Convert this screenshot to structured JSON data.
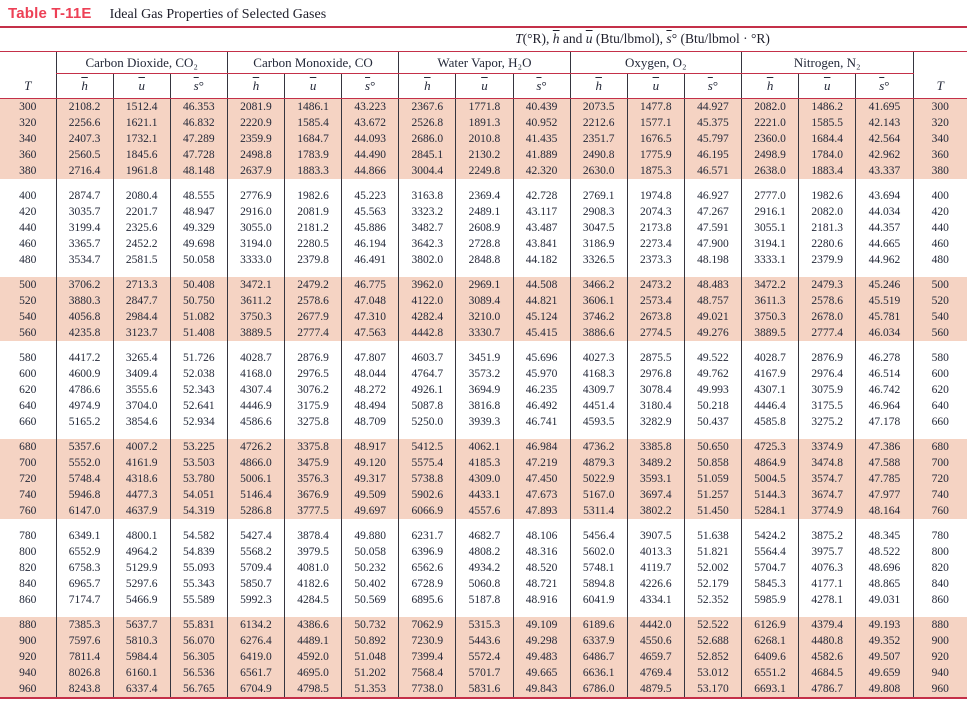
{
  "title": {
    "label": "Table T-11E",
    "caption": "Ideal Gas Properties of Selected Gases"
  },
  "units_header_parts": [
    {
      "style": "var",
      "text": "T"
    },
    {
      "style": "plain",
      "text": "(°R), "
    },
    {
      "style": "var-bar",
      "text": "h"
    },
    {
      "style": "plain",
      "text": " and "
    },
    {
      "style": "var-bar",
      "text": "u"
    },
    {
      "style": "plain",
      "text": " (Btu/lbmol), "
    },
    {
      "style": "var-bar",
      "text": "s"
    },
    {
      "style": "plain",
      "text": "° (Btu/lbmol · °R)"
    }
  ],
  "columns": {
    "t_label": "T",
    "gases": [
      "Carbon Dioxide, CO₂",
      "Carbon Monoxide, CO",
      "Water Vapor, H₂O",
      "Oxygen, O₂",
      "Nitrogen, N₂"
    ],
    "properties": [
      {
        "bar": "h",
        "suffix": ""
      },
      {
        "bar": "u",
        "suffix": ""
      },
      {
        "bar": "s",
        "suffix": "°"
      }
    ]
  },
  "colors": {
    "band_pink": "#f5d3c3",
    "rule_red": "#c43049",
    "title_red": "#ed4056",
    "text": "#232838"
  },
  "table": {
    "groups": [
      {
        "shaded": true,
        "rows": [
          [
            "300",
            "2108.2",
            "1512.4",
            "46.353",
            "2081.9",
            "1486.1",
            "43.223",
            "2367.6",
            "1771.8",
            "40.439",
            "2073.5",
            "1477.8",
            "44.927",
            "2082.0",
            "1486.2",
            "41.695"
          ],
          [
            "320",
            "2256.6",
            "1621.1",
            "46.832",
            "2220.9",
            "1585.4",
            "43.672",
            "2526.8",
            "1891.3",
            "40.952",
            "2212.6",
            "1577.1",
            "45.375",
            "2221.0",
            "1585.5",
            "42.143"
          ],
          [
            "340",
            "2407.3",
            "1732.1",
            "47.289",
            "2359.9",
            "1684.7",
            "44.093",
            "2686.0",
            "2010.8",
            "41.435",
            "2351.7",
            "1676.5",
            "45.797",
            "2360.0",
            "1684.4",
            "42.564"
          ],
          [
            "360",
            "2560.5",
            "1845.6",
            "47.728",
            "2498.8",
            "1783.9",
            "44.490",
            "2845.1",
            "2130.2",
            "41.889",
            "2490.8",
            "1775.9",
            "46.195",
            "2498.9",
            "1784.0",
            "42.962"
          ],
          [
            "380",
            "2716.4",
            "1961.8",
            "48.148",
            "2637.9",
            "1883.3",
            "44.866",
            "3004.4",
            "2249.8",
            "42.320",
            "2630.0",
            "1875.3",
            "46.571",
            "2638.0",
            "1883.4",
            "43.337"
          ]
        ]
      },
      {
        "shaded": false,
        "rows": [
          [
            "400",
            "2874.7",
            "2080.4",
            "48.555",
            "2776.9",
            "1982.6",
            "45.223",
            "3163.8",
            "2369.4",
            "42.728",
            "2769.1",
            "1974.8",
            "46.927",
            "2777.0",
            "1982.6",
            "43.694"
          ],
          [
            "420",
            "3035.7",
            "2201.7",
            "48.947",
            "2916.0",
            "2081.9",
            "45.563",
            "3323.2",
            "2489.1",
            "43.117",
            "2908.3",
            "2074.3",
            "47.267",
            "2916.1",
            "2082.0",
            "44.034"
          ],
          [
            "440",
            "3199.4",
            "2325.6",
            "49.329",
            "3055.0",
            "2181.2",
            "45.886",
            "3482.7",
            "2608.9",
            "43.487",
            "3047.5",
            "2173.8",
            "47.591",
            "3055.1",
            "2181.3",
            "44.357"
          ],
          [
            "460",
            "3365.7",
            "2452.2",
            "49.698",
            "3194.0",
            "2280.5",
            "46.194",
            "3642.3",
            "2728.8",
            "43.841",
            "3186.9",
            "2273.4",
            "47.900",
            "3194.1",
            "2280.6",
            "44.665"
          ],
          [
            "480",
            "3534.7",
            "2581.5",
            "50.058",
            "3333.0",
            "2379.8",
            "46.491",
            "3802.0",
            "2848.8",
            "44.182",
            "3326.5",
            "2373.3",
            "48.198",
            "3333.1",
            "2379.9",
            "44.962"
          ]
        ]
      },
      {
        "shaded": true,
        "rows": [
          [
            "500",
            "3706.2",
            "2713.3",
            "50.408",
            "3472.1",
            "2479.2",
            "46.775",
            "3962.0",
            "2969.1",
            "44.508",
            "3466.2",
            "2473.2",
            "48.483",
            "3472.2",
            "2479.3",
            "45.246"
          ],
          [
            "520",
            "3880.3",
            "2847.7",
            "50.750",
            "3611.2",
            "2578.6",
            "47.048",
            "4122.0",
            "3089.4",
            "44.821",
            "3606.1",
            "2573.4",
            "48.757",
            "3611.3",
            "2578.6",
            "45.519"
          ],
          [
            "540",
            "4056.8",
            "2984.4",
            "51.082",
            "3750.3",
            "2677.9",
            "47.310",
            "4282.4",
            "3210.0",
            "45.124",
            "3746.2",
            "2673.8",
            "49.021",
            "3750.3",
            "2678.0",
            "45.781"
          ],
          [
            "560",
            "4235.8",
            "3123.7",
            "51.408",
            "3889.5",
            "2777.4",
            "47.563",
            "4442.8",
            "3330.7",
            "45.415",
            "3886.6",
            "2774.5",
            "49.276",
            "3889.5",
            "2777.4",
            "46.034"
          ]
        ]
      },
      {
        "shaded": false,
        "rows": [
          [
            "580",
            "4417.2",
            "3265.4",
            "51.726",
            "4028.7",
            "2876.9",
            "47.807",
            "4603.7",
            "3451.9",
            "45.696",
            "4027.3",
            "2875.5",
            "49.522",
            "4028.7",
            "2876.9",
            "46.278"
          ],
          [
            "600",
            "4600.9",
            "3409.4",
            "52.038",
            "4168.0",
            "2976.5",
            "48.044",
            "4764.7",
            "3573.2",
            "45.970",
            "4168.3",
            "2976.8",
            "49.762",
            "4167.9",
            "2976.4",
            "46.514"
          ],
          [
            "620",
            "4786.6",
            "3555.6",
            "52.343",
            "4307.4",
            "3076.2",
            "48.272",
            "4926.1",
            "3694.9",
            "46.235",
            "4309.7",
            "3078.4",
            "49.993",
            "4307.1",
            "3075.9",
            "46.742"
          ],
          [
            "640",
            "4974.9",
            "3704.0",
            "52.641",
            "4446.9",
            "3175.9",
            "48.494",
            "5087.8",
            "3816.8",
            "46.492",
            "4451.4",
            "3180.4",
            "50.218",
            "4446.4",
            "3175.5",
            "46.964"
          ],
          [
            "660",
            "5165.2",
            "3854.6",
            "52.934",
            "4586.6",
            "3275.8",
            "48.709",
            "5250.0",
            "3939.3",
            "46.741",
            "4593.5",
            "3282.9",
            "50.437",
            "4585.8",
            "3275.2",
            "47.178"
          ]
        ]
      },
      {
        "shaded": true,
        "rows": [
          [
            "680",
            "5357.6",
            "4007.2",
            "53.225",
            "4726.2",
            "3375.8",
            "48.917",
            "5412.5",
            "4062.1",
            "46.984",
            "4736.2",
            "3385.8",
            "50.650",
            "4725.3",
            "3374.9",
            "47.386"
          ],
          [
            "700",
            "5552.0",
            "4161.9",
            "53.503",
            "4866.0",
            "3475.9",
            "49.120",
            "5575.4",
            "4185.3",
            "47.219",
            "4879.3",
            "3489.2",
            "50.858",
            "4864.9",
            "3474.8",
            "47.588"
          ],
          [
            "720",
            "5748.4",
            "4318.6",
            "53.780",
            "5006.1",
            "3576.3",
            "49.317",
            "5738.8",
            "4309.0",
            "47.450",
            "5022.9",
            "3593.1",
            "51.059",
            "5004.5",
            "3574.7",
            "47.785"
          ],
          [
            "740",
            "5946.8",
            "4477.3",
            "54.051",
            "5146.4",
            "3676.9",
            "49.509",
            "5902.6",
            "4433.1",
            "47.673",
            "5167.0",
            "3697.4",
            "51.257",
            "5144.3",
            "3674.7",
            "47.977"
          ],
          [
            "760",
            "6147.0",
            "4637.9",
            "54.319",
            "5286.8",
            "3777.5",
            "49.697",
            "6066.9",
            "4557.6",
            "47.893",
            "5311.4",
            "3802.2",
            "51.450",
            "5284.1",
            "3774.9",
            "48.164"
          ]
        ]
      },
      {
        "shaded": false,
        "rows": [
          [
            "780",
            "6349.1",
            "4800.1",
            "54.582",
            "5427.4",
            "3878.4",
            "49.880",
            "6231.7",
            "4682.7",
            "48.106",
            "5456.4",
            "3907.5",
            "51.638",
            "5424.2",
            "3875.2",
            "48.345"
          ],
          [
            "800",
            "6552.9",
            "4964.2",
            "54.839",
            "5568.2",
            "3979.5",
            "50.058",
            "6396.9",
            "4808.2",
            "48.316",
            "5602.0",
            "4013.3",
            "51.821",
            "5564.4",
            "3975.7",
            "48.522"
          ],
          [
            "820",
            "6758.3",
            "5129.9",
            "55.093",
            "5709.4",
            "4081.0",
            "50.232",
            "6562.6",
            "4934.2",
            "48.520",
            "5748.1",
            "4119.7",
            "52.002",
            "5704.7",
            "4076.3",
            "48.696"
          ],
          [
            "840",
            "6965.7",
            "5297.6",
            "55.343",
            "5850.7",
            "4182.6",
            "50.402",
            "6728.9",
            "5060.8",
            "48.721",
            "5894.8",
            "4226.6",
            "52.179",
            "5845.3",
            "4177.1",
            "48.865"
          ],
          [
            "860",
            "7174.7",
            "5466.9",
            "55.589",
            "5992.3",
            "4284.5",
            "50.569",
            "6895.6",
            "5187.8",
            "48.916",
            "6041.9",
            "4334.1",
            "52.352",
            "5985.9",
            "4278.1",
            "49.031"
          ]
        ]
      },
      {
        "shaded": true,
        "rows": [
          [
            "880",
            "7385.3",
            "5637.7",
            "55.831",
            "6134.2",
            "4386.6",
            "50.732",
            "7062.9",
            "5315.3",
            "49.109",
            "6189.6",
            "4442.0",
            "52.522",
            "6126.9",
            "4379.4",
            "49.193"
          ],
          [
            "900",
            "7597.6",
            "5810.3",
            "56.070",
            "6276.4",
            "4489.1",
            "50.892",
            "7230.9",
            "5443.6",
            "49.298",
            "6337.9",
            "4550.6",
            "52.688",
            "6268.1",
            "4480.8",
            "49.352"
          ],
          [
            "920",
            "7811.4",
            "5984.4",
            "56.305",
            "6419.0",
            "4592.0",
            "51.048",
            "7399.4",
            "5572.4",
            "49.483",
            "6486.7",
            "4659.7",
            "52.852",
            "6409.6",
            "4582.6",
            "49.507"
          ],
          [
            "940",
            "8026.8",
            "6160.1",
            "56.536",
            "6561.7",
            "4695.0",
            "51.202",
            "7568.4",
            "5701.7",
            "49.665",
            "6636.1",
            "4769.4",
            "53.012",
            "6551.2",
            "4684.5",
            "49.659"
          ],
          [
            "960",
            "8243.8",
            "6337.4",
            "56.765",
            "6704.9",
            "4798.5",
            "51.353",
            "7738.0",
            "5831.6",
            "49.843",
            "6786.0",
            "4879.5",
            "53.170",
            "6693.1",
            "4786.7",
            "49.808"
          ]
        ]
      }
    ]
  }
}
